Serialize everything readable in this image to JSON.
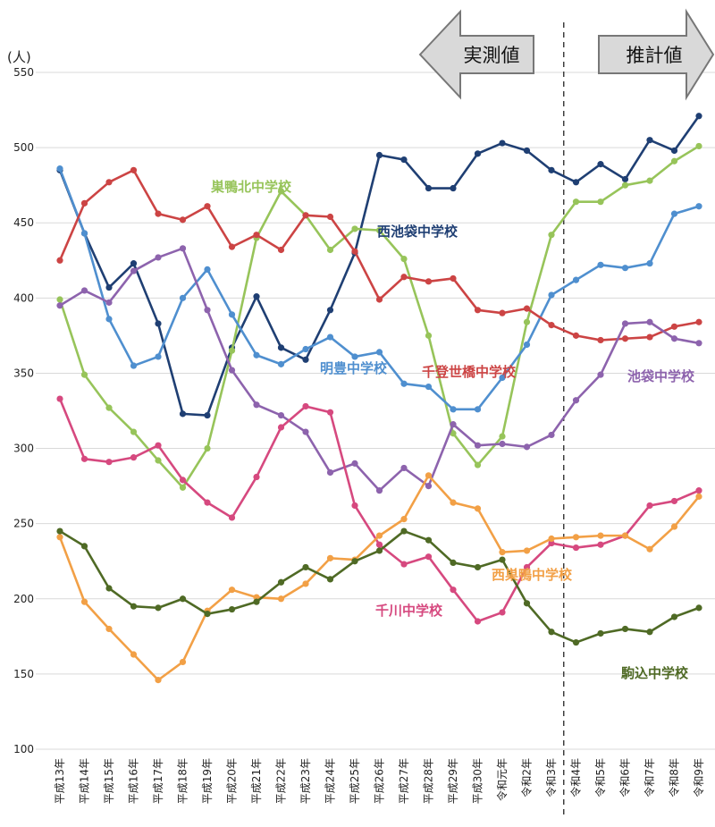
{
  "chart_data": {
    "type": "line",
    "unit_label": "(人)",
    "ylim": [
      100,
      550
    ],
    "yticks": [
      100,
      150,
      200,
      250,
      300,
      350,
      400,
      450,
      500,
      550
    ],
    "grid": true,
    "categories": [
      "平成13年",
      "平成14年",
      "平成15年",
      "平成16年",
      "平成17年",
      "平成18年",
      "平成19年",
      "平成20年",
      "平成21年",
      "平成22年",
      "平成23年",
      "平成24年",
      "平成25年",
      "平成26年",
      "平成27年",
      "平成28年",
      "平成29年",
      "平成30年",
      "令和元年",
      "令和2年",
      "令和3年",
      "令和4年",
      "令和5年",
      "令和6年",
      "令和7年",
      "令和8年",
      "令和9年"
    ],
    "annotations": {
      "measured": "実測値",
      "estimated": "推計値"
    },
    "series": [
      {
        "name": "西池袋中学校",
        "color": "#1f3f73",
        "values": [
          485,
          443,
          407,
          423,
          383,
          323,
          322,
          367,
          401,
          367,
          359,
          392,
          430,
          495,
          492,
          473,
          473,
          496,
          503,
          498,
          485,
          477,
          489,
          479,
          505,
          498,
          521
        ]
      },
      {
        "name": "巣鴨北中学校",
        "color": "#97c45a",
        "values": [
          399,
          349,
          327,
          311,
          292,
          274,
          300,
          365,
          440,
          471,
          455,
          432,
          446,
          445,
          426,
          375,
          310,
          289,
          308,
          384,
          442,
          464,
          464,
          475,
          478,
          491,
          501
        ]
      },
      {
        "name": "明豊中学校",
        "color": "#4f8fcf",
        "values": [
          486,
          443,
          386,
          355,
          361,
          400,
          419,
          389,
          362,
          356,
          366,
          374,
          361,
          364,
          343,
          341,
          326,
          326,
          347,
          369,
          402,
          412,
          422,
          420,
          423,
          456,
          461
        ]
      },
      {
        "name": "千登世橋中学校",
        "color": "#cc4444",
        "values": [
          425,
          463,
          477,
          485,
          456,
          452,
          461,
          434,
          442,
          432,
          455,
          454,
          431,
          399,
          414,
          411,
          413,
          392,
          390,
          393,
          382,
          375,
          372,
          373,
          374,
          381,
          384
        ]
      },
      {
        "name": "池袋中学校",
        "color": "#8d63ad",
        "values": [
          395,
          405,
          397,
          418,
          427,
          433,
          392,
          352,
          329,
          322,
          311,
          284,
          290,
          272,
          287,
          275,
          316,
          302,
          303,
          301,
          309,
          332,
          349,
          383,
          384,
          373,
          370
        ]
      },
      {
        "name": "千川中学校",
        "color": "#d6497f",
        "values": [
          333,
          293,
          291,
          294,
          302,
          279,
          264,
          254,
          281,
          314,
          328,
          324,
          262,
          236,
          223,
          228,
          206,
          185,
          191,
          221,
          237,
          234,
          236,
          242,
          262,
          265,
          272
        ]
      },
      {
        "name": "西巣鴨中学校",
        "color": "#f2a046",
        "values": [
          241,
          198,
          180,
          163,
          146,
          158,
          192,
          206,
          201,
          200,
          210,
          227,
          226,
          242,
          253,
          282,
          264,
          260,
          231,
          232,
          240,
          241,
          242,
          242,
          233,
          248,
          268
        ]
      },
      {
        "name": "駒込中学校",
        "color": "#4f6a25",
        "values": [
          245,
          235,
          207,
          195,
          194,
          200,
          190,
          193,
          198,
          211,
          221,
          213,
          225,
          232,
          245,
          239,
          224,
          221,
          226,
          197,
          178,
          171,
          177,
          180,
          178,
          188,
          194
        ]
      }
    ]
  }
}
